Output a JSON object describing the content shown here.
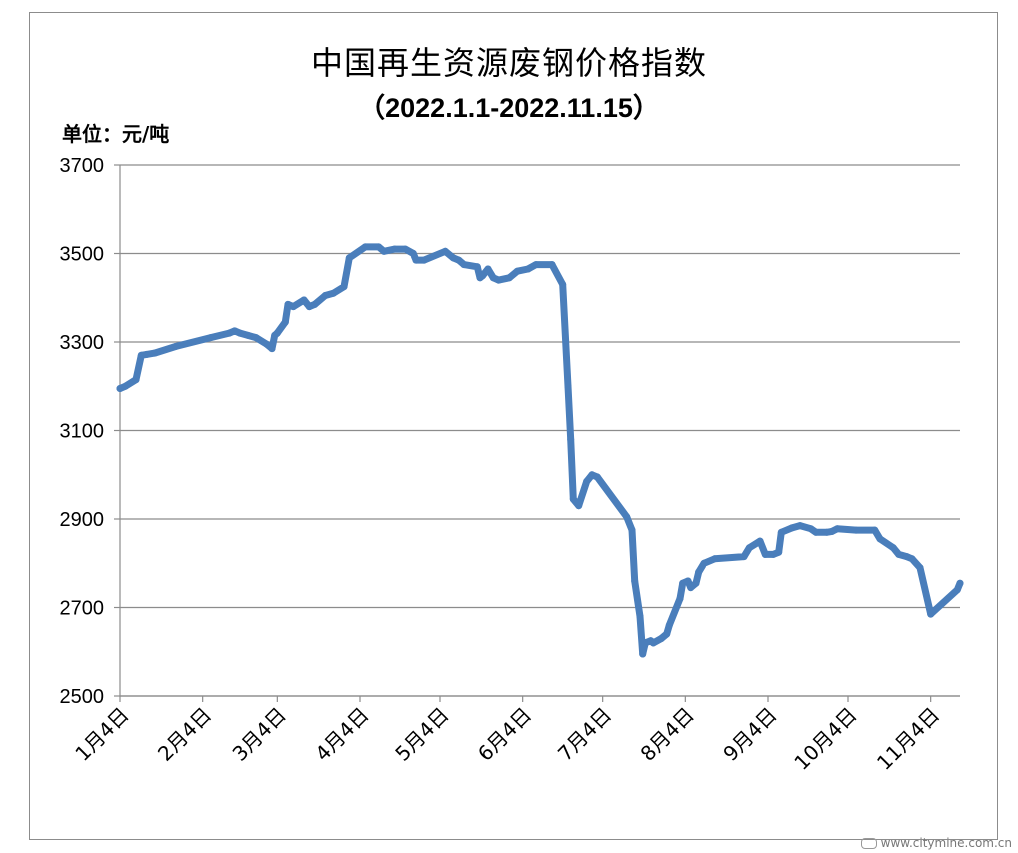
{
  "chart_data": {
    "type": "line",
    "title": "中国再生资源废钢价格指数",
    "subtitle": "（2022.1.1-2022.11.15）",
    "unit_label": "单位：元/吨",
    "ylim": [
      2500,
      3700
    ],
    "yticks": [
      3700,
      3500,
      3300,
      3100,
      2900,
      2700,
      2500
    ],
    "xlim": [
      "2022-01-04",
      "2022-11-15"
    ],
    "xticks": [
      {
        "label": "1月4日",
        "date": "2022-01-04"
      },
      {
        "label": "2月4日",
        "date": "2022-02-04"
      },
      {
        "label": "3月4日",
        "date": "2022-03-04"
      },
      {
        "label": "4月4日",
        "date": "2022-04-04"
      },
      {
        "label": "5月4日",
        "date": "2022-05-04"
      },
      {
        "label": "6月4日",
        "date": "2022-06-04"
      },
      {
        "label": "7月4日",
        "date": "2022-07-04"
      },
      {
        "label": "8月4日",
        "date": "2022-08-04"
      },
      {
        "label": "9月4日",
        "date": "2022-09-04"
      },
      {
        "label": "10月4日",
        "date": "2022-10-04"
      },
      {
        "label": "11月4日",
        "date": "2022-11-04"
      }
    ],
    "grid": true,
    "line_color": "#4a7ebb",
    "series": [
      {
        "points": [
          [
            "2022-01-04",
            3195
          ],
          [
            "2022-01-06",
            3200
          ],
          [
            "2022-01-10",
            3215
          ],
          [
            "2022-01-12",
            3270
          ],
          [
            "2022-01-14",
            3272
          ],
          [
            "2022-01-17",
            3275
          ],
          [
            "2022-01-25",
            3290
          ],
          [
            "2022-02-07",
            3310
          ],
          [
            "2022-02-14",
            3320
          ],
          [
            "2022-02-16",
            3325
          ],
          [
            "2022-02-18",
            3320
          ],
          [
            "2022-02-21",
            3315
          ],
          [
            "2022-02-24",
            3310
          ],
          [
            "2022-02-28",
            3295
          ],
          [
            "2022-03-02",
            3285
          ],
          [
            "2022-03-03",
            3315
          ],
          [
            "2022-03-04",
            3320
          ],
          [
            "2022-03-07",
            3345
          ],
          [
            "2022-03-08",
            3385
          ],
          [
            "2022-03-10",
            3380
          ],
          [
            "2022-03-14",
            3395
          ],
          [
            "2022-03-16",
            3380
          ],
          [
            "2022-03-18",
            3385
          ],
          [
            "2022-03-22",
            3405
          ],
          [
            "2022-03-25",
            3410
          ],
          [
            "2022-03-29",
            3425
          ],
          [
            "2022-03-31",
            3490
          ],
          [
            "2022-04-06",
            3515
          ],
          [
            "2022-04-11",
            3515
          ],
          [
            "2022-04-13",
            3505
          ],
          [
            "2022-04-17",
            3510
          ],
          [
            "2022-04-21",
            3510
          ],
          [
            "2022-04-24",
            3500
          ],
          [
            "2022-04-25",
            3485
          ],
          [
            "2022-04-28",
            3485
          ],
          [
            "2022-05-06",
            3505
          ],
          [
            "2022-05-09",
            3490
          ],
          [
            "2022-05-11",
            3485
          ],
          [
            "2022-05-13",
            3475
          ],
          [
            "2022-05-18",
            3470
          ],
          [
            "2022-05-19",
            3445
          ],
          [
            "2022-05-20",
            3450
          ],
          [
            "2022-05-22",
            3465
          ],
          [
            "2022-05-24",
            3445
          ],
          [
            "2022-05-26",
            3440
          ],
          [
            "2022-05-30",
            3445
          ],
          [
            "2022-06-02",
            3460
          ],
          [
            "2022-06-06",
            3465
          ],
          [
            "2022-06-09",
            3475
          ],
          [
            "2022-06-15",
            3475
          ],
          [
            "2022-06-19",
            3430
          ],
          [
            "2022-06-21",
            3200
          ],
          [
            "2022-06-22",
            3080
          ],
          [
            "2022-06-23",
            2945
          ],
          [
            "2022-06-25",
            2930
          ],
          [
            "2022-06-28",
            2985
          ],
          [
            "2022-06-30",
            3000
          ],
          [
            "2022-07-02",
            2995
          ],
          [
            "2022-07-13",
            2905
          ],
          [
            "2022-07-15",
            2875
          ],
          [
            "2022-07-16",
            2760
          ],
          [
            "2022-07-18",
            2680
          ],
          [
            "2022-07-19",
            2595
          ],
          [
            "2022-07-20",
            2620
          ],
          [
            "2022-07-22",
            2625
          ],
          [
            "2022-07-23",
            2620
          ],
          [
            "2022-07-26",
            2630
          ],
          [
            "2022-07-28",
            2640
          ],
          [
            "2022-07-29",
            2660
          ],
          [
            "2022-08-02",
            2720
          ],
          [
            "2022-08-03",
            2755
          ],
          [
            "2022-08-05",
            2760
          ],
          [
            "2022-08-06",
            2745
          ],
          [
            "2022-08-08",
            2755
          ],
          [
            "2022-08-09",
            2780
          ],
          [
            "2022-08-11",
            2800
          ],
          [
            "2022-08-15",
            2810
          ],
          [
            "2022-08-26",
            2815
          ],
          [
            "2022-08-28",
            2835
          ],
          [
            "2022-09-01",
            2850
          ],
          [
            "2022-09-03",
            2820
          ],
          [
            "2022-09-06",
            2820
          ],
          [
            "2022-09-08",
            2825
          ],
          [
            "2022-09-09",
            2870
          ],
          [
            "2022-09-13",
            2880
          ],
          [
            "2022-09-16",
            2885
          ],
          [
            "2022-09-20",
            2878
          ],
          [
            "2022-09-22",
            2870
          ],
          [
            "2022-09-26",
            2870
          ],
          [
            "2022-09-28",
            2872
          ],
          [
            "2022-09-30",
            2878
          ],
          [
            "2022-10-07",
            2875
          ],
          [
            "2022-10-14",
            2875
          ],
          [
            "2022-10-16",
            2855
          ],
          [
            "2022-10-21",
            2835
          ],
          [
            "2022-10-23",
            2820
          ],
          [
            "2022-10-26",
            2815
          ],
          [
            "2022-10-28",
            2810
          ],
          [
            "2022-10-31",
            2790
          ],
          [
            "2022-11-04",
            2685
          ],
          [
            "2022-11-14",
            2740
          ],
          [
            "2022-11-15",
            2755
          ]
        ]
      }
    ]
  },
  "watermark": "www.citymine.com.cn"
}
